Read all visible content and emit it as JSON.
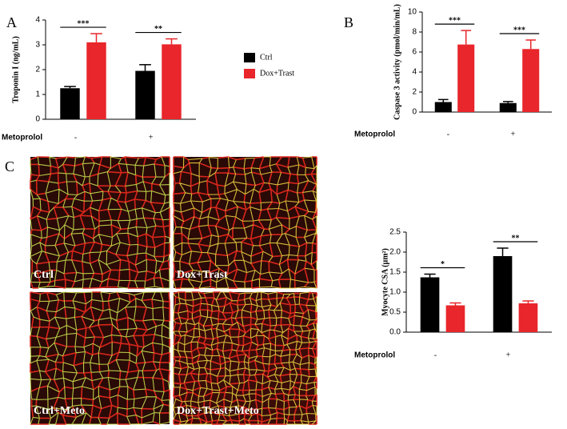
{
  "panels": [
    "A",
    "B",
    "C"
  ],
  "images": [
    "Ctrl",
    "Dox+Trast",
    "Ctrl+Meto",
    "Dox+Trast+Meto"
  ],
  "chart_data": [
    {
      "type": "bar",
      "ylabel": "Troponin I (ng/mL)",
      "xlabel": "Metoprolol",
      "categories": [
        "-",
        "+"
      ],
      "ylim": [
        0,
        4
      ],
      "yticks": [
        0,
        1,
        2,
        3,
        4
      ],
      "series": [
        {
          "name": "Ctrl",
          "color": "#000000",
          "values": [
            1.25,
            1.95
          ],
          "errors": [
            0.07,
            0.25
          ]
        },
        {
          "name": "Dox+Trast",
          "color": "#e8262b",
          "values": [
            3.1,
            3.02
          ],
          "errors": [
            0.35,
            0.22
          ]
        }
      ],
      "annotations": [
        "***",
        "**"
      ],
      "legend": true
    },
    {
      "type": "bar",
      "ylabel": "Caspase 3 activity (pmol/min/mL)",
      "xlabel": "Metoprolol",
      "categories": [
        "-",
        "+"
      ],
      "ylim": [
        0,
        10
      ],
      "yticks": [
        0,
        2,
        4,
        6,
        8,
        10
      ],
      "series": [
        {
          "color": "#000000",
          "values": [
            1.0,
            0.9
          ],
          "errors": [
            0.25,
            0.15
          ]
        },
        {
          "color": "#e8262b",
          "values": [
            6.75,
            6.3
          ],
          "errors": [
            1.4,
            0.9
          ]
        }
      ],
      "annotations": [
        "***",
        "***"
      ],
      "legend": false
    },
    {
      "type": "bar",
      "ylabel": "Myocyte CSA (μm²)",
      "xlabel": "Metoprolol",
      "categories": [
        "-",
        "+"
      ],
      "ylim": [
        0,
        2.5
      ],
      "yticks": [
        {
          "value": 0,
          "label": "0.0"
        },
        {
          "value": 0.5,
          "label": "0.5"
        },
        {
          "value": 1,
          "label": "1.0"
        },
        {
          "value": 1.5,
          "label": "1.5"
        },
        {
          "value": 2,
          "label": "2.0"
        },
        {
          "value": 2.5,
          "label": "2.5"
        }
      ],
      "series": [
        {
          "color": "#000000",
          "values": [
            1.37,
            1.9
          ],
          "errors": [
            0.08,
            0.2
          ]
        },
        {
          "color": "#e8262b",
          "values": [
            0.67,
            0.72
          ],
          "errors": [
            0.06,
            0.06
          ]
        }
      ],
      "annotations": [
        "*",
        "**"
      ],
      "legend": false
    }
  ]
}
